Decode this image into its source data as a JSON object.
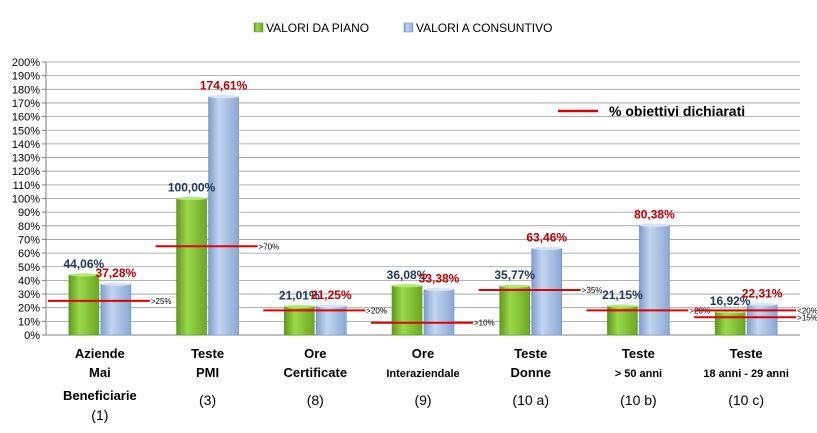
{
  "chart_data": {
    "type": "bar",
    "legend": {
      "position": "top",
      "entries": [
        "VALORI DA PIANO",
        "VALORI A CONSUNTIVO"
      ]
    },
    "target_legend": "% obiettivi dichiarati",
    "ylim": [
      0,
      200
    ],
    "yticks": [
      "0%",
      "10%",
      "20%",
      "30%",
      "40%",
      "50%",
      "60%",
      "70%",
      "80%",
      "90%",
      "100%",
      "110%",
      "120%",
      "130%",
      "140%",
      "150%",
      "160%",
      "170%",
      "180%",
      "190%",
      "200%"
    ],
    "grid": true,
    "categories": [
      {
        "line1": "Aziende",
        "line2": "Mai",
        "line3": "Beneficiarie",
        "code": "(1)"
      },
      {
        "line1": "Teste",
        "line2": "PMI",
        "line3": "",
        "code": "(3)"
      },
      {
        "line1": "Ore",
        "line2": "Certificate",
        "line3": "",
        "code": "(8)"
      },
      {
        "line1": "Ore",
        "line2": "Interaziendale",
        "line3": "",
        "code": "(9)"
      },
      {
        "line1": "Teste",
        "line2": "Donne",
        "line3": "",
        "code": "(10 a)"
      },
      {
        "line1": "Teste",
        "line2": "> 50 anni",
        "line3": "",
        "code": "(10 b)"
      },
      {
        "line1": "Teste",
        "line2": "18 anni - 29 anni",
        "line3": "",
        "code": "(10 c)"
      }
    ],
    "series": [
      {
        "name": "VALORI DA PIANO",
        "values": [
          44.06,
          100.0,
          21.01,
          36.08,
          35.77,
          21.15,
          16.92
        ],
        "labels": [
          "44,06%",
          "100,00%",
          "21,01%",
          "36,08%",
          "35,77%",
          "21,15%",
          "16,92%"
        ]
      },
      {
        "name": "VALORI A CONSUNTIVO",
        "values": [
          37.28,
          174.61,
          21.25,
          33.38,
          63.46,
          80.38,
          22.31
        ],
        "labels": [
          "37,28%",
          "174,61%",
          "21,25%",
          "33,38%",
          "63,46%",
          "80,38%",
          "22,31%"
        ]
      }
    ],
    "targets": [
      {
        "category": 0,
        "value": 25,
        "label": ">25%"
      },
      {
        "category": 1,
        "value": 65,
        "label": ">70%"
      },
      {
        "category": 2,
        "value": 18,
        "label": ">20%"
      },
      {
        "category": 3,
        "value": 9,
        "label": ">10%"
      },
      {
        "category": 4,
        "value": 33,
        "label": ">35%"
      },
      {
        "category": 5,
        "value": 18,
        "label": ">20%"
      },
      {
        "category": 6,
        "value": 18,
        "label": "<20%"
      },
      {
        "category": 6,
        "value": 13,
        "label": ">15%"
      }
    ],
    "colors": {
      "piano": "#8fcf3c",
      "piano_dark": "#5e9a1c",
      "consuntivo": "#a4c0e6",
      "consuntivo_dark": "#6d8fc2",
      "label_piano": "#1f3a63",
      "label_consuntivo": "#c00000",
      "target": "#e00000",
      "grid": "#9a9a9a"
    }
  }
}
